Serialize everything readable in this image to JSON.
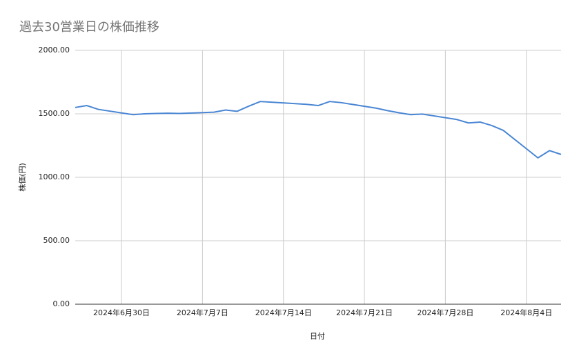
{
  "chart_data": {
    "type": "line",
    "title": "過去30営業日の株価推移",
    "x_label": "日付",
    "y_label": "株価(円)",
    "x": [
      "2024-06-26",
      "2024-06-27",
      "2024-06-28",
      "2024-07-01",
      "2024-07-02",
      "2024-07-03",
      "2024-07-04",
      "2024-07-05",
      "2024-07-08",
      "2024-07-09",
      "2024-07-10",
      "2024-07-11",
      "2024-07-12",
      "2024-07-16",
      "2024-07-17",
      "2024-07-18",
      "2024-07-19",
      "2024-07-22",
      "2024-07-23",
      "2024-07-24",
      "2024-07-25",
      "2024-07-26",
      "2024-07-29",
      "2024-07-30",
      "2024-07-31",
      "2024-08-01",
      "2024-08-02",
      "2024-08-05",
      "2024-08-06",
      "2024-08-07"
    ],
    "series": [
      {
        "name": "株価",
        "color": "#4a86d4",
        "values": [
          1550,
          1565,
          1535,
          1493,
          1500,
          1503,
          1505,
          1503,
          1513,
          1530,
          1520,
          1560,
          1597,
          1575,
          1565,
          1597,
          1588,
          1545,
          1525,
          1508,
          1493,
          1498,
          1455,
          1428,
          1435,
          1408,
          1370,
          1153,
          1210,
          1180
        ]
      }
    ],
    "xlim": [
      "2024-06-26",
      "2024-08-07"
    ],
    "xticks": [
      {
        "value": "2024-06-30",
        "label": "2024年6月30日"
      },
      {
        "value": "2024-07-07",
        "label": "2024年7月7日"
      },
      {
        "value": "2024-07-14",
        "label": "2024年7月14日"
      },
      {
        "value": "2024-07-21",
        "label": "2024年7月21日"
      },
      {
        "value": "2024-07-28",
        "label": "2024年7月28日"
      },
      {
        "value": "2024-08-04",
        "label": "2024年8月4日"
      }
    ],
    "ylim": [
      0,
      2000
    ],
    "yticks": [
      {
        "value": 0,
        "label": "0.00"
      },
      {
        "value": 500,
        "label": "500.00"
      },
      {
        "value": 1000,
        "label": "1000.00"
      },
      {
        "value": 1500,
        "label": "1500.00"
      },
      {
        "value": 2000,
        "label": "2000.00"
      }
    ],
    "grid": true
  }
}
